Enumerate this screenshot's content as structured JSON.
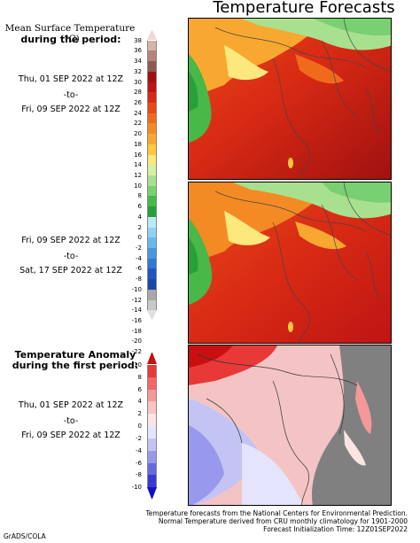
{
  "title": "Temperature Forecasts",
  "panel1": {
    "label_line1": "Mean Surface Temperature (°C)",
    "label_line2": "during the period:",
    "date_start": "Thu, 01 SEP 2022 at 12Z",
    "to": "-to-",
    "date_end": "Fri, 09 SEP 2022 at 12Z"
  },
  "panel2": {
    "date_start": "Fri, 09 SEP 2022 at 12Z",
    "to": "-to-",
    "date_end": "Sat, 17 SEP 2022 at 12Z"
  },
  "panel3": {
    "label_line1": "Temperature Anomaly",
    "label_line2": "during the first period:",
    "date_start": "Thu, 01 SEP 2022 at 12Z",
    "to": "-to-",
    "date_end": "Fri, 09 SEP 2022 at 12Z"
  },
  "temp_scale": {
    "ticks": [
      "38",
      "36",
      "34",
      "32",
      "30",
      "28",
      "26",
      "24",
      "22",
      "20",
      "18",
      "16",
      "14",
      "12",
      "10",
      "8",
      "6",
      "4",
      "2",
      "0",
      "-2",
      "-4",
      "-6",
      "-8",
      "-10",
      "-12",
      "-14",
      "-16",
      "-18",
      "-20",
      "-22"
    ],
    "colors": [
      "#f0d8d0",
      "#d8b4a8",
      "#b48478",
      "#8c5a50",
      "#a01010",
      "#be1414",
      "#d82a14",
      "#e84a18",
      "#f06a1c",
      "#f48a24",
      "#f8a830",
      "#fcc840",
      "#fce87c",
      "#d8f0a0",
      "#a8e090",
      "#78d070",
      "#48b848",
      "#28a038",
      "#bce8f8",
      "#90d0f4",
      "#68b8ec",
      "#4898e0",
      "#3078d4",
      "#2058c0",
      "#1848a8",
      "#a8a8a8",
      "#c8c8c8",
      "#e0e0e0"
    ]
  },
  "anom_scale": {
    "ticks": [
      "10",
      "8",
      "6",
      "4",
      "2",
      "0",
      "-2",
      "-4",
      "-6",
      "-8",
      "-10"
    ],
    "colors": [
      "#c81010",
      "#e83838",
      "#f06868",
      "#f49898",
      "#f8c4c4",
      "#fce4e4",
      "#e4e4fc",
      "#c4c4f4",
      "#9898ec",
      "#6868e0",
      "#3838d0",
      "#1010c0"
    ]
  },
  "footer": {
    "line1": "Temperature forecasts from the National Centers for Environmental Prediction.",
    "line2": "Normal Temperature derived from CRU monthly climatology for 1901-2000",
    "line3": "Forecast Initialization Time: 12Z01SEP2022"
  },
  "credit": "GrADS/COLA"
}
